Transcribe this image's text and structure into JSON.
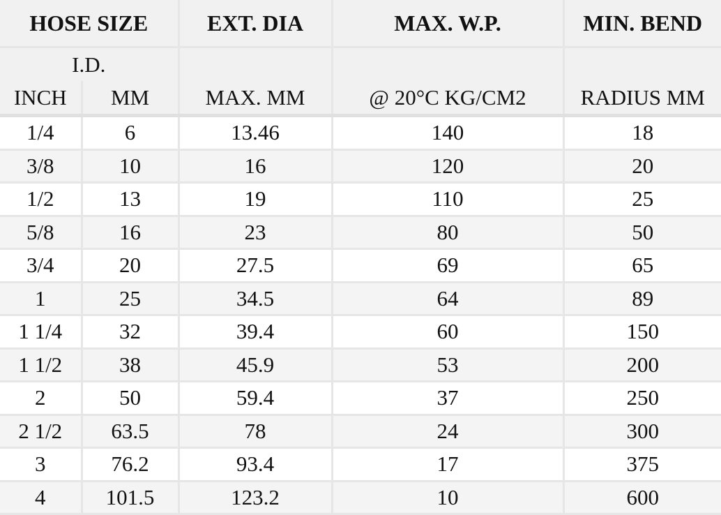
{
  "headers": {
    "row1": [
      "HOSE SIZE",
      "EXT. DIA",
      "MAX. W.P.",
      "MIN. BEND"
    ],
    "row2": [
      "I.D."
    ],
    "row3": [
      "INCH",
      "MM",
      "MAX. MM",
      "@ 20°C KG/CM2",
      "RADIUS MM"
    ]
  },
  "rows": [
    [
      "1/4",
      "6",
      "13.46",
      "140",
      "18"
    ],
    [
      "3/8",
      "10",
      "16",
      "120",
      "20"
    ],
    [
      "1/2",
      "13",
      "19",
      "110",
      "25"
    ],
    [
      "5/8",
      "16",
      "23",
      "80",
      "50"
    ],
    [
      "3/4",
      "20",
      "27.5",
      "69",
      "65"
    ],
    [
      "1",
      "25",
      "34.5",
      "64",
      "89"
    ],
    [
      "1 1/4",
      "32",
      "39.4",
      "60",
      "150"
    ],
    [
      "1 1/2",
      "38",
      "45.9",
      "53",
      "200"
    ],
    [
      "2",
      "50",
      "59.4",
      "37",
      "250"
    ],
    [
      "2 1/2",
      "63.5",
      "78",
      "24",
      "300"
    ],
    [
      "3",
      "76.2",
      "93.4",
      "17",
      "375"
    ],
    [
      "4",
      "101.5",
      "123.2",
      "10",
      "600"
    ]
  ]
}
